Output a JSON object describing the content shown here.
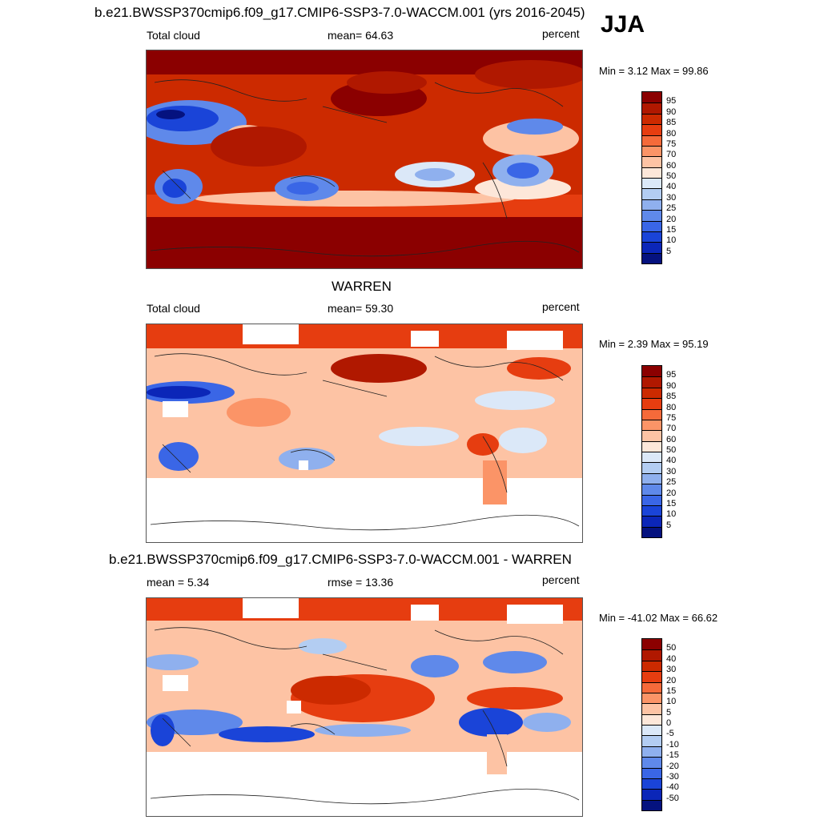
{
  "season": "JJA",
  "panels": [
    {
      "title": "b.e21.BWSSP370cmip6.f09_g17.CMIP6-SSP3-7.0-WACCM.001 (yrs 2016-2045)",
      "left_label": "Total cloud",
      "center_label": "mean=  64.63",
      "right_label": "percent",
      "minmax": "Min =   3.12 Max =  99.86",
      "colorbar": {
        "labels": [
          "95",
          "90",
          "85",
          "80",
          "75",
          "70",
          "60",
          "50",
          "40",
          "30",
          "25",
          "20",
          "15",
          "10",
          "5"
        ],
        "colors": [
          "#8b0000",
          "#b01800",
          "#cc2a00",
          "#e63d10",
          "#f56a3a",
          "#fb9467",
          "#fdc3a4",
          "#fde7d9",
          "#dbe8f8",
          "#b3cdf2",
          "#8fb0ee",
          "#5f89ea",
          "#3a66e6",
          "#1a44d8",
          "#0b26b8",
          "#05127f"
        ]
      },
      "map_style": "model"
    },
    {
      "title": "WARREN",
      "left_label": "Total cloud",
      "center_label": "mean=  59.30",
      "right_label": "percent",
      "minmax": "Min =   2.39 Max =  95.19",
      "colorbar": {
        "labels": [
          "95",
          "90",
          "85",
          "80",
          "75",
          "70",
          "60",
          "50",
          "40",
          "30",
          "25",
          "20",
          "15",
          "10",
          "5"
        ],
        "colors": [
          "#8b0000",
          "#b01800",
          "#cc2a00",
          "#e63d10",
          "#f56a3a",
          "#fb9467",
          "#fdc3a4",
          "#fde7d9",
          "#dbe8f8",
          "#b3cdf2",
          "#8fb0ee",
          "#5f89ea",
          "#3a66e6",
          "#1a44d8",
          "#0b26b8",
          "#05127f"
        ]
      },
      "map_style": "obs"
    },
    {
      "title": "b.e21.BWSSP370cmip6.f09_g17.CMIP6-SSP3-7.0-WACCM.001 - WARREN",
      "left_label": "mean =   5.34",
      "center_label": "rmse =  13.36",
      "right_label": "percent",
      "minmax": "Min = -41.02 Max =  66.62",
      "colorbar": {
        "labels": [
          "50",
          "40",
          "30",
          "20",
          "15",
          "10",
          "5",
          "0",
          "-5",
          "-10",
          "-15",
          "-20",
          "-30",
          "-40",
          "-50"
        ],
        "colors": [
          "#8b0000",
          "#b01800",
          "#cc2a00",
          "#e63d10",
          "#f56a3a",
          "#fb9467",
          "#fdc3a4",
          "#fde7d9",
          "#dbe8f8",
          "#b3cdf2",
          "#8fb0ee",
          "#5f89ea",
          "#3a66e6",
          "#1a44d8",
          "#0b26b8",
          "#05127f"
        ]
      },
      "map_style": "diff"
    }
  ]
}
